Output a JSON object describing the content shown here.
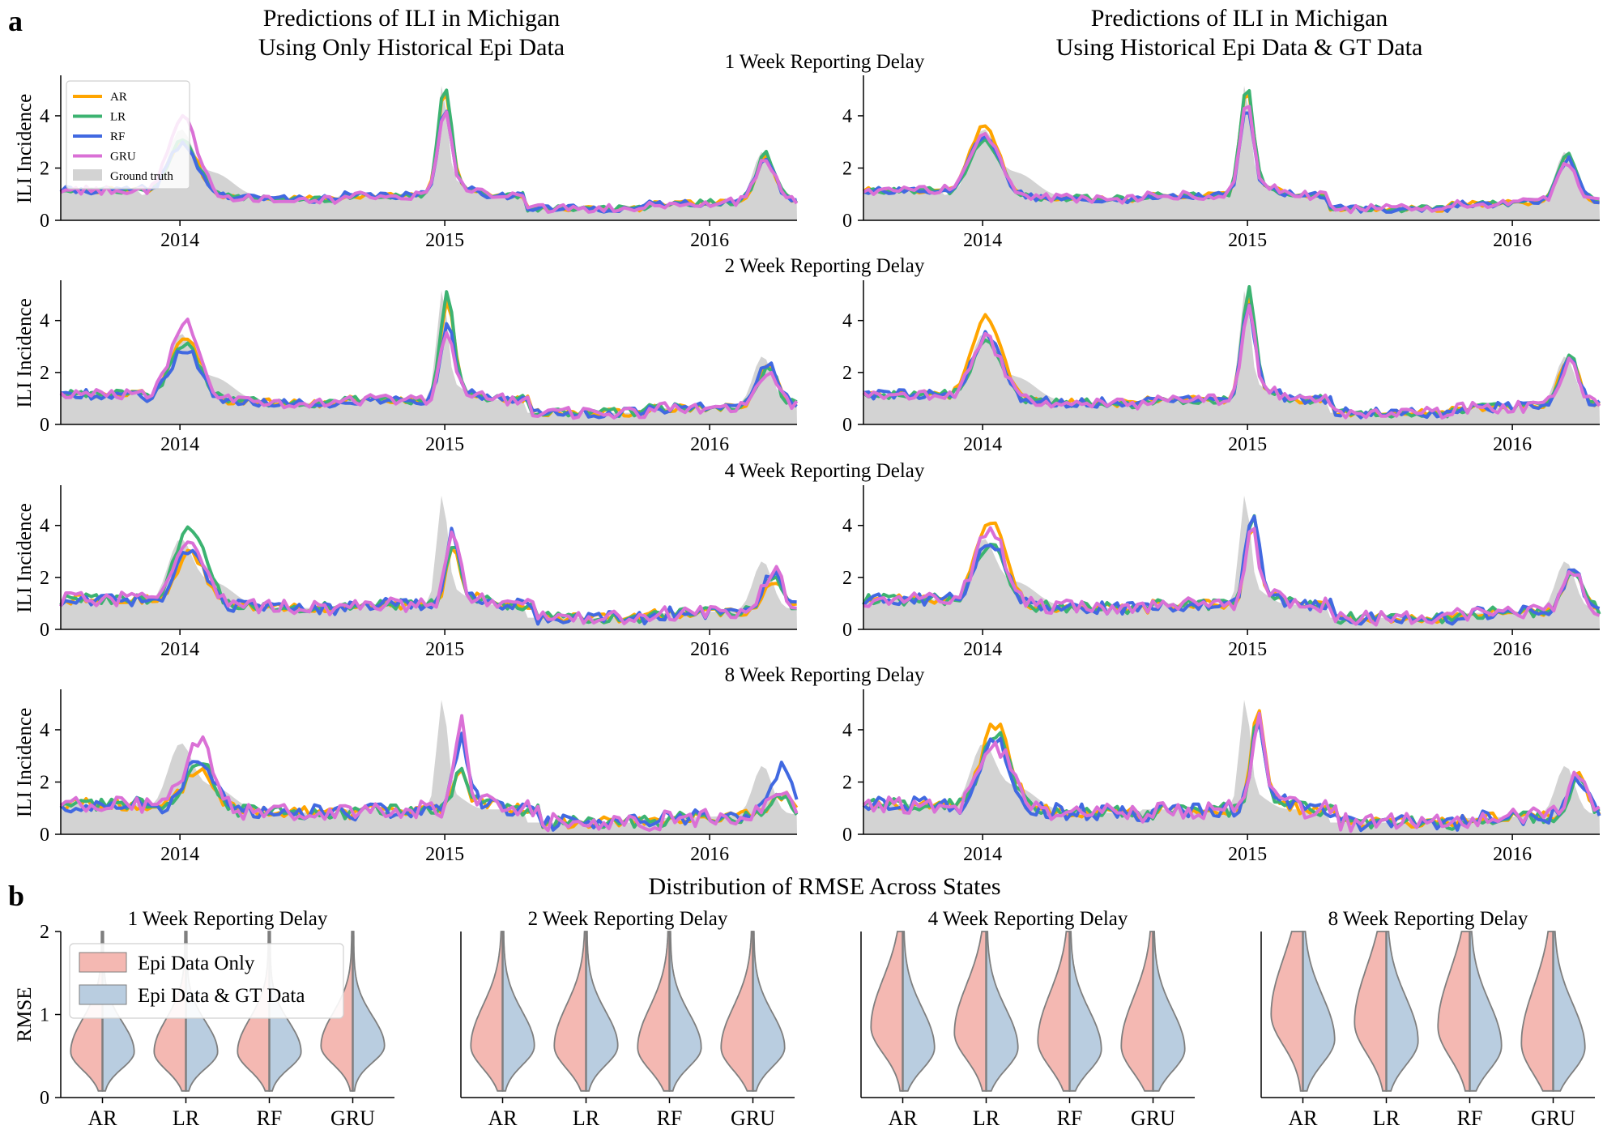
{
  "panel_labels": {
    "a": "a",
    "b": "b"
  },
  "titles": {
    "col_left": [
      "Predictions of ILI in Michigan",
      "Using Only Historical Epi Data"
    ],
    "col_right": [
      "Predictions of ILI in Michigan",
      "Using Historical Epi Data & GT Data"
    ],
    "violin_section": "Distribution of RMSE Across States"
  },
  "colors": {
    "AR": "#ffa500",
    "LR": "#3cb371",
    "RF": "#4169e1",
    "GRU": "#da70d6",
    "ground_truth": "#d3d3d3",
    "epi_only": "#f4b8b2",
    "epi_gt": "#b9cde0",
    "violin_edge": "#7f7f7f"
  },
  "chart_data": [
    {
      "type": "line",
      "panel": "a",
      "ylabel": "ILI Incidence",
      "x_ticks": [
        "2014",
        "2015",
        "2016"
      ],
      "ylim": [
        0,
        5.3
      ],
      "y_ticks": [
        "0",
        "2",
        "4"
      ],
      "legend": {
        "placement": "upper-left",
        "entries": [
          "AR",
          "LR",
          "RF",
          "GRU",
          "Ground truth"
        ]
      },
      "ground_truth_peaks": [
        {
          "date": "2014-01-05",
          "value": 3.5
        },
        {
          "date": "2014-12-28",
          "value": 4.9
        },
        {
          "date": "2016-03-13",
          "value": 2.7
        }
      ],
      "rows": [
        {
          "title": "1 Week Reporting Delay",
          "left": {
            "AR": {
              "peaks": [
                3.0,
                4.9,
                2.5
              ]
            },
            "LR": {
              "peaks": [
                3.0,
                5.1,
                2.6
              ]
            },
            "RF": {
              "peaks": [
                2.9,
                4.3,
                2.5
              ]
            },
            "GRU": {
              "peaks": [
                3.9,
                4.0,
                2.4
              ]
            }
          },
          "right": {
            "AR": {
              "peaks": [
                3.6,
                4.9,
                2.5
              ]
            },
            "LR": {
              "peaks": [
                3.1,
                5.1,
                2.6
              ]
            },
            "RF": {
              "peaks": [
                3.2,
                4.2,
                2.4
              ]
            },
            "GRU": {
              "peaks": [
                3.3,
                4.5,
                2.3
              ]
            }
          }
        },
        {
          "title": "2 Week Reporting Delay",
          "left": {
            "AR": {
              "peaks": [
                3.4,
                4.7,
                2.3
              ]
            },
            "LR": {
              "peaks": [
                3.1,
                5.1,
                2.2
              ]
            },
            "RF": {
              "peaks": [
                2.9,
                3.9,
                2.5
              ]
            },
            "GRU": {
              "peaks": [
                4.0,
                3.6,
                2.1
              ]
            }
          },
          "right": {
            "AR": {
              "peaks": [
                4.1,
                4.6,
                2.6
              ]
            },
            "LR": {
              "peaks": [
                3.1,
                5.1,
                2.7
              ]
            },
            "RF": {
              "peaks": [
                3.4,
                4.4,
                2.5
              ]
            },
            "GRU": {
              "peaks": [
                3.3,
                4.4,
                2.4
              ]
            }
          }
        },
        {
          "title": "4 Week Reporting Delay",
          "left": {
            "AR": {
              "peaks": [
                2.9,
                3.0,
                2.0
              ]
            },
            "LR": {
              "peaks": [
                4.0,
                3.2,
                2.2
              ]
            },
            "RF": {
              "peaks": [
                3.2,
                3.7,
                2.3
              ]
            },
            "GRU": {
              "peaks": [
                3.4,
                3.8,
                2.4
              ]
            }
          },
          "right": {
            "AR": {
              "peaks": [
                4.2,
                4.0,
                2.4
              ]
            },
            "LR": {
              "peaks": [
                3.2,
                4.3,
                2.3
              ]
            },
            "RF": {
              "peaks": [
                3.4,
                4.5,
                2.4
              ]
            },
            "GRU": {
              "peaks": [
                3.8,
                3.7,
                2.2
              ]
            }
          }
        },
        {
          "title": "8 Week Reporting Delay",
          "left": {
            "AR": {
              "peaks": [
                2.5,
                2.3,
                1.6
              ]
            },
            "LR": {
              "peaks": [
                2.8,
                2.3,
                1.5
              ]
            },
            "RF": {
              "peaks": [
                2.9,
                3.6,
                2.7
              ]
            },
            "GRU": {
              "peaks": [
                3.5,
                4.2,
                1.9
              ]
            }
          },
          "right": {
            "AR": {
              "peaks": [
                4.2,
                4.7,
                2.3
              ]
            },
            "LR": {
              "peaks": [
                3.8,
                4.2,
                2.0
              ]
            },
            "RF": {
              "peaks": [
                3.5,
                4.1,
                2.2
              ]
            },
            "GRU": {
              "peaks": [
                3.4,
                4.3,
                2.3
              ]
            }
          }
        }
      ]
    },
    {
      "type": "violin",
      "panel": "b",
      "ylabel": "RMSE",
      "ylim": [
        0,
        2
      ],
      "y_ticks": [
        "0",
        "1",
        "2"
      ],
      "categories": [
        "AR",
        "LR",
        "RF",
        "GRU"
      ],
      "legend": {
        "placement": "upper-left",
        "entries": [
          "Epi Data Only",
          "Epi Data & GT Data"
        ]
      },
      "subplots": [
        {
          "title": "1 Week Reporting Delay",
          "epi_only_median": [
            0.55,
            0.55,
            0.55,
            0.62
          ],
          "epi_gt_median": [
            0.55,
            0.55,
            0.55,
            0.62
          ]
        },
        {
          "title": "2 Week Reporting Delay",
          "epi_only_median": [
            0.62,
            0.62,
            0.6,
            0.6
          ],
          "epi_gt_median": [
            0.62,
            0.62,
            0.6,
            0.6
          ]
        },
        {
          "title": "4 Week Reporting Delay",
          "epi_only_median": [
            0.85,
            0.78,
            0.68,
            0.62
          ],
          "epi_gt_median": [
            0.6,
            0.6,
            0.58,
            0.58
          ]
        },
        {
          "title": "8 Week Reporting Delay",
          "epi_only_median": [
            1.0,
            0.9,
            0.85,
            0.65
          ],
          "epi_gt_median": [
            0.7,
            0.68,
            0.62,
            0.6
          ]
        }
      ]
    }
  ]
}
